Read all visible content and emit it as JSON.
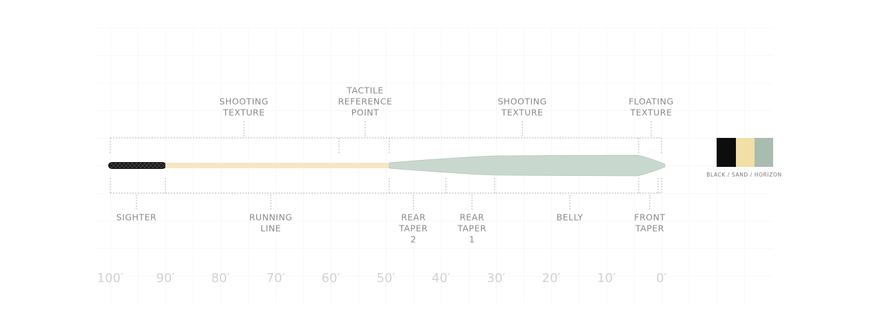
{
  "top_labels": [
    {
      "lines": [
        "SHOOTING",
        "TEXTURE"
      ]
    },
    {
      "lines": [
        "TACTILE",
        "REFERENCE",
        "POINT"
      ]
    },
    {
      "lines": [
        "SHOOTING",
        "TEXTURE"
      ]
    },
    {
      "lines": [
        "FLOATING",
        "TEXTURE"
      ]
    }
  ],
  "bottom_labels": [
    {
      "lines": [
        "SIGHTER"
      ]
    },
    {
      "lines": [
        "RUNNING",
        "LINE"
      ]
    },
    {
      "lines": [
        "REAR",
        "TAPER",
        "2"
      ]
    },
    {
      "lines": [
        "REAR",
        "TAPER",
        "1"
      ]
    },
    {
      "lines": [
        "BELLY"
      ]
    },
    {
      "lines": [
        "FRONT",
        "TAPER"
      ]
    }
  ],
  "scale": [
    "100′",
    "90′",
    "80′",
    "70′",
    "60′",
    "50′",
    "40′",
    "30′",
    "20′",
    "10′",
    "0′"
  ],
  "color_swatch": {
    "label": "BLACK / SAND / HORIZON"
  }
}
